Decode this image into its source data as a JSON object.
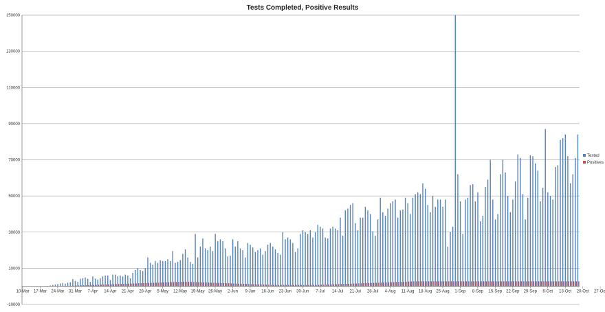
{
  "chart_data": {
    "type": "bar",
    "title": "Tests Completed, Positive Results",
    "xlabel": "",
    "ylabel": "",
    "ylim": [
      -10000,
      150000
    ],
    "yticks": [
      -10000,
      10000,
      30000,
      50000,
      70000,
      90000,
      110000,
      130000,
      150000
    ],
    "grid": true,
    "legend_position": "right",
    "series": [
      {
        "name": "Tested",
        "color": "#4f81bd",
        "values": [
          0,
          0,
          0,
          0,
          0,
          0,
          0,
          0,
          100,
          200,
          300,
          500,
          800,
          1000,
          1300,
          1600,
          1900,
          1500,
          2000,
          2300,
          4000,
          3000,
          2500,
          4200,
          4500,
          4900,
          4200,
          2400,
          5500,
          4300,
          3800,
          4500,
          5500,
          6000,
          6000,
          3500,
          6500,
          6500,
          5500,
          6000,
          5500,
          6500,
          6000,
          4500,
          7500,
          9000,
          10000,
          9000,
          8500,
          10000,
          16000,
          13000,
          12000,
          14000,
          13000,
          14500,
          14000,
          14000,
          15000,
          14000,
          19500,
          13000,
          13500,
          14500,
          18000,
          20500,
          16000,
          13500,
          12500,
          29000,
          16000,
          22000,
          26500,
          21000,
          20000,
          22000,
          19500,
          29000,
          25000,
          26000,
          25000,
          21000,
          16500,
          17000,
          26000,
          22000,
          25000,
          21000,
          20000,
          16000,
          24000,
          23000,
          21500,
          19000,
          20000,
          21000,
          17500,
          19500,
          23000,
          24000,
          22000,
          20500,
          18500,
          17500,
          30000,
          26000,
          27000,
          26000,
          24000,
          19000,
          21000,
          29000,
          31000,
          30000,
          29000,
          31000,
          27000,
          30000,
          34000,
          33000,
          32000,
          27000,
          26500,
          32000,
          33000,
          32000,
          31000,
          38000,
          28000,
          42000,
          43000,
          45000,
          46000,
          35000,
          31000,
          38000,
          38000,
          44000,
          42000,
          40000,
          30500,
          28000,
          37000,
          49000,
          41000,
          39000,
          43000,
          46000,
          47000,
          48000,
          38000,
          42000,
          42500,
          49000,
          46000,
          40000,
          49000,
          51000,
          52000,
          51000,
          57000,
          54000,
          45000,
          41000,
          50000,
          44000,
          48000,
          48000,
          44000,
          48000,
          22000,
          30000,
          33000,
          150000,
          62000,
          47000,
          29000,
          48000,
          49000,
          56000,
          56500,
          47000,
          52000,
          36000,
          39000,
          55000,
          59000,
          70000,
          48000,
          37000,
          40000,
          62000,
          70000,
          63000,
          50000,
          41000,
          48000,
          58000,
          73000,
          71000,
          51000,
          37000,
          49000,
          72500,
          72000,
          68000,
          64000,
          47000,
          54500,
          87000,
          52000,
          50000,
          48000,
          66000,
          67000,
          81000,
          82000,
          84000,
          72000,
          57000,
          62000,
          71000,
          84000
        ]
      },
      {
        "name": "Positives",
        "color": "#c0504d",
        "values": [
          0,
          0,
          0,
          0,
          0,
          0,
          0,
          0,
          0,
          0,
          10,
          20,
          30,
          50,
          80,
          120,
          160,
          200,
          250,
          300,
          400,
          450,
          500,
          550,
          600,
          650,
          700,
          750,
          800,
          850,
          900,
          950,
          1000,
          1050,
          1100,
          1150,
          1200,
          1250,
          1300,
          1350,
          1400,
          1450,
          1500,
          1550,
          1600,
          1650,
          1700,
          1750,
          1800,
          1850,
          1900,
          1950,
          2000,
          2050,
          2100,
          2150,
          2200,
          2250,
          2300,
          2350,
          2400,
          2450,
          2500,
          2550,
          2600,
          2550,
          2500,
          2450,
          2400,
          2350,
          2300,
          2250,
          2200,
          2150,
          2100,
          2050,
          2000,
          1950,
          1900,
          1850,
          1800,
          1750,
          1700,
          1650,
          1600,
          1550,
          1500,
          1450,
          1400,
          1350,
          1300,
          1250,
          1200,
          1150,
          1100,
          1050,
          1000,
          950,
          900,
          850,
          800,
          800,
          800,
          800,
          800,
          800,
          800,
          800,
          800,
          800,
          800,
          800,
          800,
          800,
          800,
          800,
          800,
          800,
          850,
          900,
          950,
          1000,
          1050,
          1100,
          1150,
          1200,
          1250,
          1300,
          1350,
          1400,
          1450,
          1500,
          1550,
          1600,
          1650,
          1700,
          1750,
          1800,
          1850,
          1900,
          1950,
          2000,
          2050,
          2100,
          2150,
          2200,
          2250,
          2300,
          2350,
          2400,
          2450,
          2500,
          2550,
          2600,
          2650,
          2700,
          2750,
          2800,
          2800,
          2800,
          2800,
          2800,
          2800,
          2800,
          2800,
          2800,
          2800,
          2800,
          2800,
          2800,
          2800,
          2800,
          2800,
          2800,
          2800,
          2800,
          2800,
          2800,
          2800,
          2800,
          2800,
          2800,
          2800,
          2800,
          2800,
          2800,
          2800,
          2800,
          2800,
          2800,
          2800,
          2800,
          2800,
          2800,
          2800,
          2800,
          2800,
          2800,
          2800,
          2800,
          2800,
          2800,
          2800,
          2800,
          2800,
          2800,
          2800,
          2800,
          2800,
          2800,
          2800,
          2800,
          2800,
          2800,
          2800,
          2800,
          2800,
          2800,
          2800,
          2800,
          2800,
          2800,
          2800,
          2800,
          2800,
          2800,
          2800,
          2800,
          2800,
          2800,
          2800,
          2800,
          2800,
          2800,
          2800,
          2800
        ]
      }
    ],
    "x_tick_labels": [
      "10-Mar",
      "17-Mar",
      "24-Mar",
      "31-Mar",
      "7-Apr",
      "14-Apr",
      "21-Apr",
      "28-Apr",
      "5-May",
      "12-May",
      "19-May",
      "26-May",
      "2-Jun",
      "9-Jun",
      "16-Jun",
      "23-Jun",
      "30-Jun",
      "7-Jul",
      "14-Jul",
      "21-Jul",
      "28-Jul",
      "4-Aug",
      "11-Aug",
      "18-Aug",
      "25-Aug",
      "1-Sep",
      "8-Sep",
      "15-Sep",
      "22-Sep",
      "29-Sep",
      "6-Oct",
      "13-Oct",
      "20-Oct",
      "27-Oct"
    ]
  }
}
